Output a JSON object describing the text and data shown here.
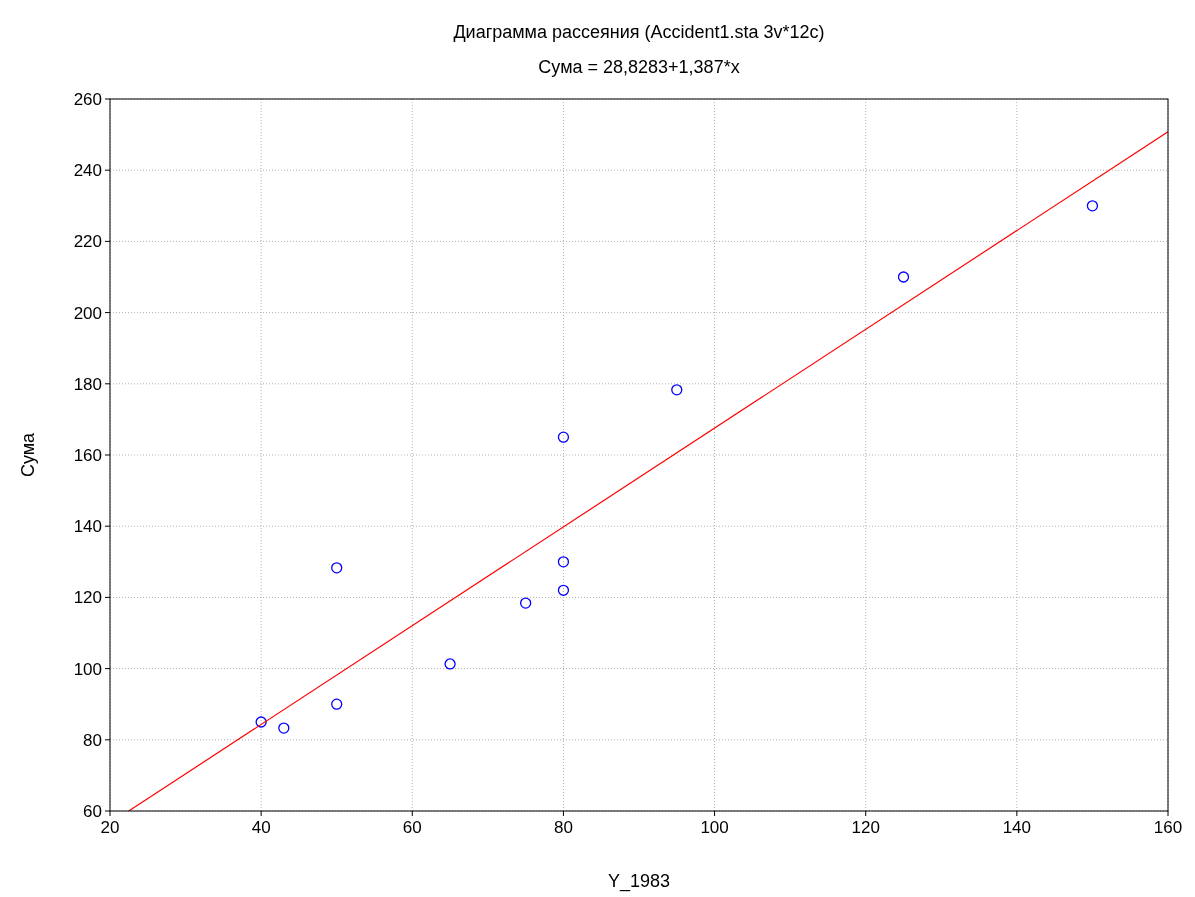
{
  "chart_data": {
    "type": "scatter",
    "title": "Диаграмма рассеяния (Accident1.sta 3v*12c)",
    "subtitle": "Сума = 28,8283+1,387*x",
    "xlabel": "Y_1983",
    "ylabel": "Сума",
    "xlim": [
      20,
      160
    ],
    "xticks": [
      20,
      40,
      60,
      80,
      100,
      120,
      140,
      160
    ],
    "ylim": [
      60,
      260
    ],
    "yticks": [
      60,
      80,
      100,
      120,
      140,
      160,
      180,
      200,
      220,
      240,
      260
    ],
    "grid": true,
    "series": [
      {
        "color": "#0000ff",
        "marker": "circle",
        "x": [
          40,
          43,
          50,
          50,
          65,
          75,
          80,
          80,
          80,
          95,
          125,
          150
        ],
        "values": [
          85,
          83.3,
          128.3,
          90,
          101.3,
          118.4,
          130,
          122,
          165,
          178.3,
          210,
          230
        ]
      },
      {
        "type": "line",
        "color": "#ff0000",
        "marker": "none",
        "line_style": "solid",
        "x": [
          22.48,
          160
        ],
        "values": [
          60,
          250.8
        ]
      }
    ]
  }
}
